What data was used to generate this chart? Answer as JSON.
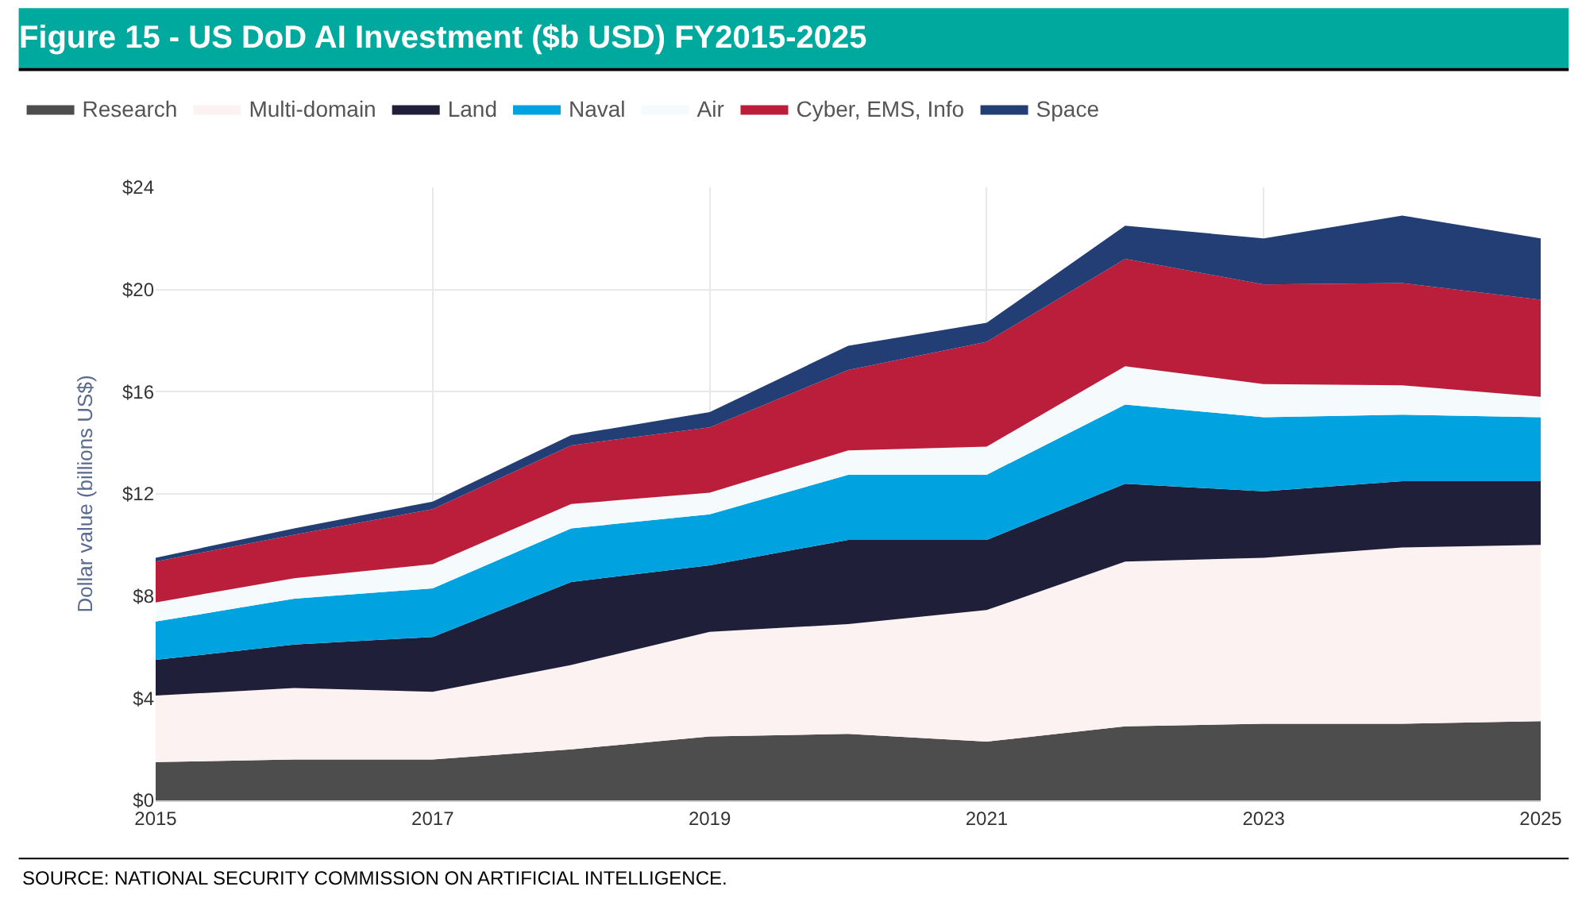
{
  "chart_data": {
    "type": "area",
    "stacked": true,
    "title": "Figure 15 - US DoD AI Investment ($b USD) FY2015-2025",
    "ylabel": "Dollar value (billions US$)",
    "annotations": [
      "SOURCE: NATIONAL SECURITY COMMISSION ON ARTIFICIAL INTELLIGENCE."
    ],
    "x": [
      2015,
      2016,
      2017,
      2018,
      2019,
      2020,
      2021,
      2022,
      2023,
      2024,
      2025
    ],
    "series": [
      {
        "name": "Research",
        "color": "#4d4d4d",
        "values": [
          1.5,
          1.6,
          1.6,
          2.0,
          2.5,
          2.6,
          2.3,
          2.9,
          3.0,
          3.0,
          3.1
        ]
      },
      {
        "name": "Multi-domain",
        "color": "#fdf2f2",
        "values": [
          2.6,
          2.8,
          2.65,
          3.3,
          4.1,
          4.3,
          5.15,
          6.45,
          6.5,
          6.9,
          6.9
        ]
      },
      {
        "name": "Land",
        "color": "#1f1f3a",
        "values": [
          1.4,
          1.7,
          2.15,
          3.25,
          2.6,
          3.3,
          2.75,
          3.05,
          2.6,
          2.6,
          2.5
        ]
      },
      {
        "name": "Naval",
        "color": "#00a3e0",
        "values": [
          1.5,
          1.8,
          1.9,
          2.1,
          2.0,
          2.55,
          2.55,
          3.1,
          2.9,
          2.6,
          2.5
        ]
      },
      {
        "name": "Air",
        "color": "#f5fafd",
        "values": [
          0.75,
          0.8,
          0.95,
          0.95,
          0.85,
          0.95,
          1.1,
          1.5,
          1.3,
          1.15,
          0.8
        ]
      },
      {
        "name": "Cyber, EMS, Info",
        "color": "#bb1e3a",
        "values": [
          1.6,
          1.7,
          2.15,
          2.3,
          2.55,
          3.15,
          4.1,
          4.2,
          3.9,
          4.0,
          3.8
        ]
      },
      {
        "name": "Space",
        "color": "#233e74",
        "values": [
          0.15,
          0.25,
          0.3,
          0.4,
          0.6,
          0.95,
          0.75,
          1.3,
          1.8,
          2.65,
          2.4
        ]
      }
    ],
    "xlim": [
      2015,
      2025
    ],
    "xticks": [
      2015,
      2017,
      2019,
      2021,
      2023,
      2025
    ],
    "ylim": [
      0,
      24
    ],
    "yticks": [
      {
        "value": 0,
        "label": "$0"
      },
      {
        "value": 4,
        "label": "$4"
      },
      {
        "value": 8,
        "label": "$8"
      },
      {
        "value": 12,
        "label": "$12"
      },
      {
        "value": 16,
        "label": "$16"
      },
      {
        "value": 20,
        "label": "$20"
      },
      {
        "value": 24,
        "label": "$24"
      }
    ],
    "grid": true,
    "legend": "top"
  }
}
